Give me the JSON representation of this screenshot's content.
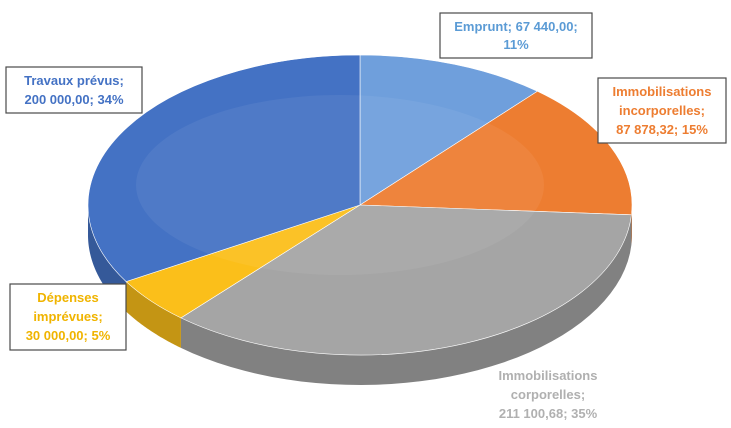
{
  "chart_data": {
    "type": "pie",
    "title": "",
    "slices": [
      {
        "name": "Emprunt",
        "value": 67440.0,
        "value_label": "67 440,00",
        "percent_label": "11%",
        "color": "#6f9fdc"
      },
      {
        "name": "Immobilisations incorporelles",
        "value": 87878.32,
        "value_label": "87 878,32",
        "percent_label": "15%",
        "color": "#ed7d31"
      },
      {
        "name": "Immobilisations corporelles",
        "value": 211100.68,
        "value_label": "211 100,68",
        "percent_label": "35%",
        "color": "#a5a5a5"
      },
      {
        "name": "Dépenses imprévues",
        "value": 30000.0,
        "value_label": "30 000,00",
        "percent_label": "5%",
        "color": "#fbbf1a"
      },
      {
        "name": "Travaux prévus",
        "value": 200000.0,
        "value_label": "200 000,00",
        "percent_label": "34%",
        "color": "#4472c4"
      }
    ],
    "style": "3d-tilted",
    "legend": "none",
    "label_boxes": [
      "Emprunt",
      "Immobilisations incorporelles",
      "Dépenses imprévues",
      "Travaux prévus"
    ]
  },
  "labels": {
    "emprunt": [
      "Emprunt; 67 440,00;",
      "11%"
    ],
    "incorporelles": [
      "Immobilisations",
      "incorporelles;",
      "87 878,32; 15%"
    ],
    "corporelles": [
      "Immobilisations",
      "corporelles;",
      "211 100,68; 35%"
    ],
    "imprevues": [
      "Dépenses",
      "imprévues;",
      "30 000,00; 5%"
    ],
    "travaux": [
      "Travaux prévus;",
      "200 000,00; 34%"
    ]
  }
}
